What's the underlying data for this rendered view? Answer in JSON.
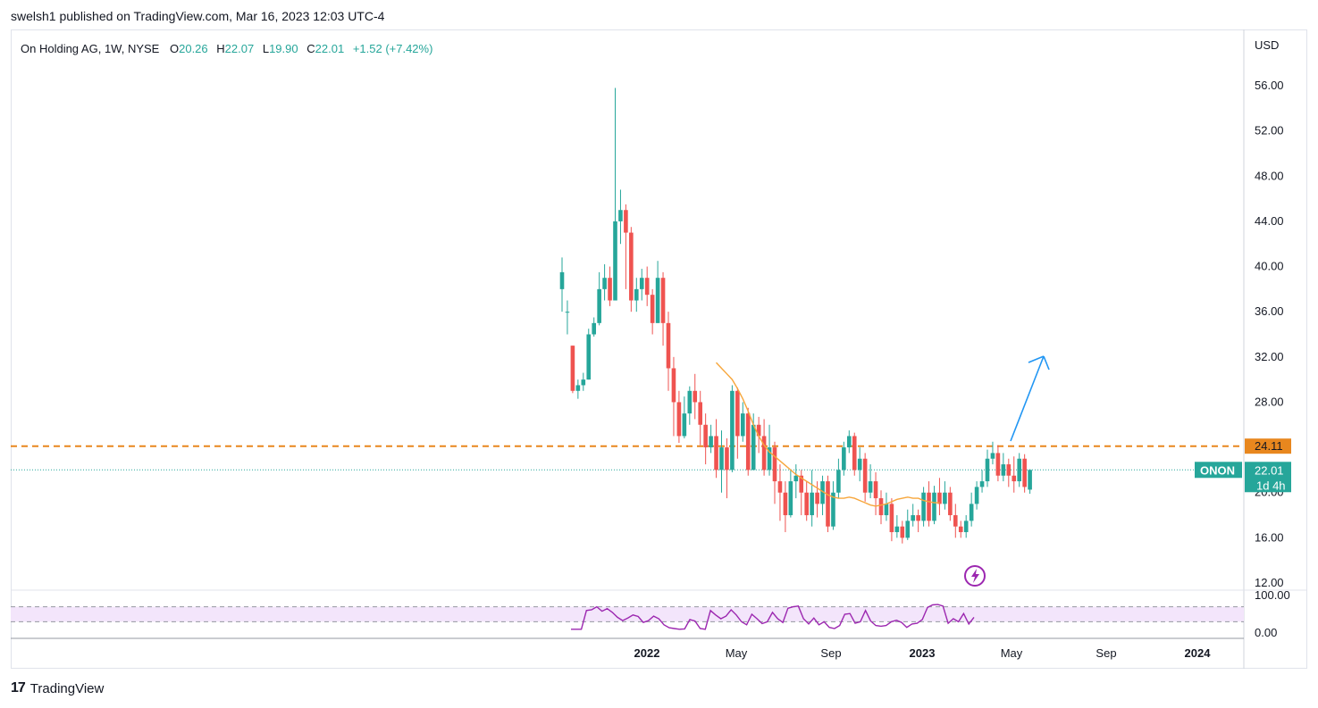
{
  "header": {
    "publish_line": "swelsh1 published on TradingView.com, Mar 16, 2023 12:03 UTC-4"
  },
  "legend": {
    "symbol": "On Holding AG, 1W, NYSE",
    "o_label": "O",
    "o_value": "20.26",
    "h_label": "H",
    "h_value": "22.07",
    "l_label": "L",
    "l_value": "19.90",
    "c_label": "C",
    "c_value": "22.01",
    "change": "+1.52 (+7.42%)"
  },
  "footer": {
    "brand": "TradingView",
    "logo_glyph": "17"
  },
  "colors": {
    "up": "#26a69a",
    "down": "#ef5350",
    "ma": "#f7a63b",
    "level": "#e8871e",
    "arrow": "#2196f3",
    "rsi": "#9c27b0",
    "rsi_band": "#f3e5fb",
    "price_tag": "#26a69a"
  },
  "icons": {
    "flash_event": "lightning-icon"
  },
  "chart_data": {
    "type": "candlestick",
    "currency_label": "USD",
    "y_ticks": [
      "56.00",
      "52.00",
      "48.00",
      "44.00",
      "40.00",
      "36.00",
      "32.00",
      "28.00",
      "20.00",
      "16.00",
      "12.00"
    ],
    "x_ticks": [
      "2022",
      "May",
      "Sep",
      "2023",
      "May",
      "Sep",
      "2024"
    ],
    "ylim": [
      12,
      60
    ],
    "level_line": {
      "value": 24.11,
      "label": "24.11"
    },
    "last_price": {
      "value": 22.01,
      "symbol_tag": "ONON",
      "label": "22.01",
      "countdown": "1d 4h"
    },
    "candles": [
      [
        38,
        39.5,
        36,
        40.8
      ],
      [
        36,
        36,
        34,
        37
      ],
      [
        33,
        29,
        28.8,
        33
      ],
      [
        29,
        29.5,
        28.3,
        30
      ],
      [
        29.5,
        30,
        29,
        30.6
      ],
      [
        30,
        34,
        30,
        34.5
      ],
      [
        34,
        35,
        33.8,
        35.5
      ],
      [
        35,
        38,
        34.8,
        39.5
      ],
      [
        38,
        39,
        37,
        40.2
      ],
      [
        39,
        37,
        36.5,
        40
      ],
      [
        37,
        44,
        37,
        55.8
      ],
      [
        44,
        45,
        42,
        46.8
      ],
      [
        45,
        43,
        38,
        45.5
      ],
      [
        43,
        37,
        36,
        43.5
      ],
      [
        37,
        38,
        36,
        39
      ],
      [
        38,
        39,
        37,
        39.8
      ],
      [
        39,
        37.5,
        36.5,
        40
      ],
      [
        37.5,
        35,
        34,
        38
      ],
      [
        35,
        39,
        35,
        40.5
      ],
      [
        39,
        35,
        33,
        39.5
      ],
      [
        35,
        31,
        29,
        36
      ],
      [
        31,
        28,
        25,
        32
      ],
      [
        28,
        25,
        24.4,
        29
      ],
      [
        25,
        27,
        24.8,
        28.5
      ],
      [
        27,
        29,
        26,
        29.4
      ],
      [
        29,
        28,
        26.5,
        30.5
      ],
      [
        28,
        26,
        24.2,
        29
      ],
      [
        26,
        24,
        22.5,
        27
      ],
      [
        24,
        25,
        23.5,
        26
      ],
      [
        25,
        22,
        21.3,
        26.5
      ],
      [
        22,
        24,
        20,
        25.5
      ],
      [
        24,
        22,
        19.5,
        24.8
      ],
      [
        22,
        29,
        21.8,
        29.5
      ],
      [
        29,
        25,
        23,
        29.3
      ],
      [
        25,
        27,
        24.5,
        28
      ],
      [
        27,
        22,
        21.5,
        27.5
      ],
      [
        22,
        26,
        22,
        27
      ],
      [
        26,
        25,
        23.5,
        26.7
      ],
      [
        25,
        22,
        21.5,
        26.5
      ],
      [
        22,
        24,
        21.5,
        26
      ],
      [
        24,
        21,
        19,
        24.5
      ],
      [
        21,
        20,
        17.5,
        22.5
      ],
      [
        20,
        18,
        16.5,
        21
      ],
      [
        18,
        21,
        17.8,
        22
      ],
      [
        21,
        21.5,
        19.5,
        22.5
      ],
      [
        21.5,
        20,
        18,
        22
      ],
      [
        20,
        18,
        17.5,
        21
      ],
      [
        18,
        20,
        17,
        22
      ],
      [
        20,
        19,
        17.8,
        21
      ],
      [
        19,
        21,
        18,
        21.5
      ],
      [
        21,
        17,
        16.5,
        21.5
      ],
      [
        17,
        20,
        16.7,
        21
      ],
      [
        20,
        22,
        19.5,
        23
      ],
      [
        22,
        24,
        21.5,
        24.5
      ],
      [
        24,
        25,
        23.5,
        25.5
      ],
      [
        25,
        22,
        21.5,
        25.3
      ],
      [
        22,
        23,
        21,
        24
      ],
      [
        23,
        20,
        19.2,
        23.5
      ],
      [
        20,
        21,
        19.5,
        22.5
      ],
      [
        21,
        19.5,
        18,
        21.8
      ],
      [
        19.5,
        18,
        17.2,
        20.2
      ],
      [
        18,
        19,
        17.5,
        20
      ],
      [
        19,
        16.5,
        15.7,
        19.5
      ],
      [
        16.5,
        17,
        16,
        18
      ],
      [
        17,
        16,
        15.5,
        17.5
      ],
      [
        16,
        17.5,
        15.8,
        18.5
      ],
      [
        17.5,
        18,
        17,
        19
      ],
      [
        18,
        17.5,
        16.5,
        18.5
      ],
      [
        17.5,
        20,
        17,
        20.5
      ],
      [
        20,
        17.5,
        17,
        21
      ],
      [
        17.5,
        20,
        17.2,
        20.6
      ],
      [
        20,
        19,
        18,
        21.3
      ],
      [
        19,
        20,
        18.5,
        21
      ],
      [
        20,
        18,
        17.5,
        20.5
      ],
      [
        18,
        17,
        16,
        19
      ],
      [
        17,
        16.5,
        16,
        17.5
      ],
      [
        16.5,
        17.5,
        16,
        18
      ],
      [
        17.5,
        19,
        17,
        20
      ],
      [
        19,
        20.5,
        18.5,
        21
      ],
      [
        20.5,
        21,
        20,
        22
      ],
      [
        21,
        23,
        20.5,
        23.8
      ],
      [
        23,
        23.5,
        22.5,
        24.5
      ],
      [
        23.5,
        21.5,
        21,
        24.2
      ],
      [
        21.5,
        22.5,
        21,
        23.5
      ],
      [
        22.5,
        21.5,
        20.5,
        23
      ],
      [
        21.5,
        21,
        20,
        23.2
      ],
      [
        21,
        23,
        20.5,
        23.5
      ],
      [
        23,
        20.5,
        20,
        23.4
      ],
      [
        20.26,
        22.01,
        19.9,
        22.07
      ]
    ],
    "ma_values": [
      31.5,
      31,
      30.5,
      30,
      29.2,
      28.3,
      27.2,
      26,
      25,
      24.2,
      23.6,
      23.2,
      22.8,
      22.4,
      22,
      21.6,
      21.3,
      21,
      20.7,
      20.4,
      20.1,
      19.8,
      19.6,
      19.5,
      19.5,
      19.6,
      19.5,
      19.3,
      19.1,
      18.9,
      18.8,
      18.9,
      19,
      19.2,
      19.4,
      19.5,
      19.6,
      19.5,
      19.5,
      19.3,
      19.2,
      19.1,
      19.1
    ],
    "rsi_bands": [
      30,
      70
    ],
    "rsi_axis": [
      "100.00",
      "0.00"
    ],
    "rsi_values": [
      10,
      10,
      10,
      60,
      62,
      70,
      58,
      65,
      55,
      42,
      33,
      40,
      48,
      44,
      28,
      33,
      45,
      38,
      22,
      14,
      12,
      10,
      11,
      36,
      32,
      12,
      10,
      60,
      48,
      38,
      45,
      62,
      48,
      30,
      22,
      50,
      38,
      25,
      30,
      55,
      38,
      28,
      66,
      70,
      72,
      38,
      24,
      40,
      22,
      30,
      15,
      12,
      20,
      50,
      52,
      26,
      30,
      60,
      32,
      20,
      18,
      20,
      30,
      34,
      28,
      15,
      24,
      26,
      36,
      68,
      75,
      76,
      72,
      26,
      38,
      30,
      52,
      24,
      42
    ]
  }
}
